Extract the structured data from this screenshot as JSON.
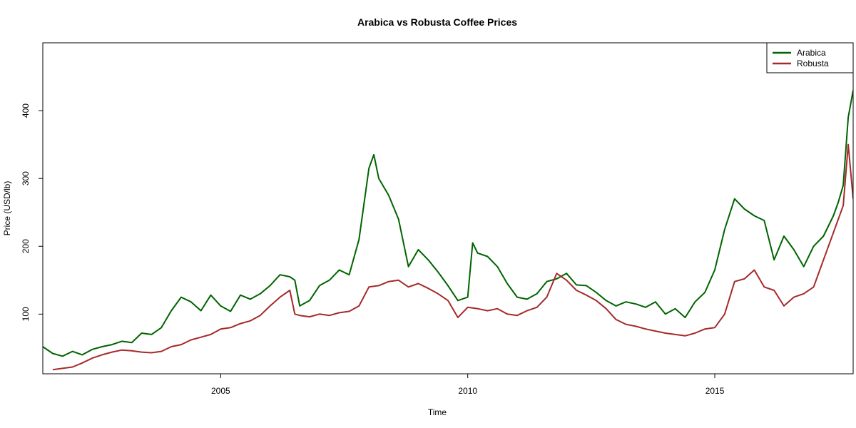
{
  "chart_data": {
    "type": "line",
    "title": "Arabica vs Robusta Coffee Prices",
    "xlabel": "Time",
    "ylabel": "Price (USD/lb)",
    "xlim": [
      2001.4,
      2017.8
    ],
    "ylim": [
      12,
      500
    ],
    "x_ticks": [
      2005,
      2010,
      2015
    ],
    "y_ticks": [
      100,
      200,
      300,
      400
    ],
    "legend_position": "top-right",
    "grid": false,
    "series": [
      {
        "name": "Arabica",
        "color": "#006400",
        "x": [
          2001.4,
          2001.6,
          2001.8,
          2002.0,
          2002.2,
          2002.4,
          2002.6,
          2002.8,
          2003.0,
          2003.2,
          2003.4,
          2003.6,
          2003.8,
          2004.0,
          2004.2,
          2004.4,
          2004.6,
          2004.8,
          2005.0,
          2005.2,
          2005.4,
          2005.6,
          2005.8,
          2006.0,
          2006.2,
          2006.4,
          2006.5,
          2006.6,
          2006.8,
          2007.0,
          2007.2,
          2007.4,
          2007.6,
          2007.8,
          2008.0,
          2008.1,
          2008.2,
          2008.4,
          2008.6,
          2008.8,
          2009.0,
          2009.2,
          2009.4,
          2009.6,
          2009.8,
          2010.0,
          2010.1,
          2010.2,
          2010.4,
          2010.6,
          2010.8,
          2011.0,
          2011.2,
          2011.4,
          2011.6,
          2011.8,
          2012.0,
          2012.2,
          2012.4,
          2012.6,
          2012.8,
          2013.0,
          2013.2,
          2013.4,
          2013.6,
          2013.8,
          2014.0,
          2014.2,
          2014.4,
          2014.6,
          2014.8,
          2015.0,
          2015.2,
          2015.4,
          2015.6,
          2015.8,
          2016.0,
          2016.2,
          2016.4,
          2016.6,
          2016.8,
          2017.0,
          2017.2,
          2017.4,
          2017.5,
          2017.6,
          2017.7,
          2017.8
        ],
        "values": [
          52,
          42,
          38,
          45,
          40,
          48,
          52,
          55,
          60,
          58,
          72,
          70,
          80,
          105,
          125,
          118,
          105,
          128,
          112,
          104,
          128,
          122,
          130,
          142,
          158,
          155,
          150,
          112,
          120,
          142,
          150,
          165,
          158,
          210,
          315,
          335,
          300,
          275,
          240,
          170,
          195,
          180,
          162,
          142,
          120,
          125,
          205,
          190,
          185,
          170,
          145,
          125,
          122,
          130,
          148,
          152,
          160,
          143,
          142,
          132,
          120,
          112,
          118,
          115,
          110,
          118,
          100,
          108,
          95,
          118,
          132,
          165,
          225,
          270,
          255,
          245,
          238,
          180,
          215,
          195,
          170,
          200,
          215,
          245,
          265,
          290,
          390,
          430
        ]
      },
      {
        "name": "Robusta",
        "color": "#A52A2A",
        "x": [
          2001.6,
          2001.8,
          2002.0,
          2002.2,
          2002.4,
          2002.6,
          2002.8,
          2003.0,
          2003.2,
          2003.4,
          2003.6,
          2003.8,
          2004.0,
          2004.2,
          2004.4,
          2004.6,
          2004.8,
          2005.0,
          2005.2,
          2005.4,
          2005.6,
          2005.8,
          2006.0,
          2006.2,
          2006.4,
          2006.5,
          2006.6,
          2006.8,
          2007.0,
          2007.2,
          2007.4,
          2007.6,
          2007.8,
          2008.0,
          2008.2,
          2008.4,
          2008.6,
          2008.8,
          2009.0,
          2009.2,
          2009.4,
          2009.6,
          2009.8,
          2010.0,
          2010.2,
          2010.4,
          2010.6,
          2010.8,
          2011.0,
          2011.2,
          2011.4,
          2011.6,
          2011.8,
          2012.0,
          2012.2,
          2012.4,
          2012.6,
          2012.8,
          2013.0,
          2013.2,
          2013.4,
          2013.6,
          2013.8,
          2014.0,
          2014.2,
          2014.4,
          2014.6,
          2014.8,
          2015.0,
          2015.2,
          2015.4,
          2015.6,
          2015.8,
          2016.0,
          2016.2,
          2016.4,
          2016.6,
          2016.8,
          2017.0,
          2017.2,
          2017.4,
          2017.5,
          2017.6,
          2017.7,
          2017.8
        ],
        "values": [
          18,
          20,
          22,
          28,
          35,
          40,
          44,
          47,
          46,
          44,
          43,
          45,
          52,
          55,
          62,
          66,
          70,
          78,
          80,
          86,
          90,
          98,
          112,
          125,
          135,
          100,
          98,
          96,
          100,
          98,
          102,
          104,
          112,
          140,
          142,
          148,
          150,
          140,
          145,
          138,
          130,
          120,
          95,
          110,
          108,
          105,
          108,
          100,
          98,
          105,
          110,
          125,
          160,
          150,
          135,
          128,
          120,
          108,
          92,
          85,
          82,
          78,
          75,
          72,
          70,
          68,
          72,
          78,
          80,
          100,
          148,
          152,
          165,
          140,
          135,
          112,
          125,
          130,
          140,
          180,
          220,
          240,
          260,
          350,
          270
        ]
      }
    ]
  }
}
